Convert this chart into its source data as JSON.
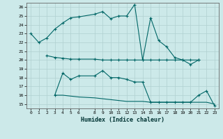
{
  "xlabel": "Humidex (Indice chaleur)",
  "bg_color": "#cce9e9",
  "grid_color": "#b0d0d0",
  "line_color": "#006666",
  "ylim": [
    14.5,
    26.5
  ],
  "xlim": [
    -0.5,
    23.5
  ],
  "yticks": [
    15,
    16,
    17,
    18,
    19,
    20,
    21,
    22,
    23,
    24,
    25,
    26
  ],
  "xticks": [
    0,
    1,
    2,
    3,
    4,
    5,
    6,
    8,
    9,
    10,
    11,
    12,
    13,
    14,
    15,
    16,
    17,
    18,
    19,
    20,
    21,
    22,
    23
  ],
  "line1_x": [
    0,
    1,
    2,
    3,
    4,
    5,
    6,
    8,
    9,
    10,
    11,
    12,
    13,
    14,
    15,
    16,
    17,
    18,
    19,
    20,
    21
  ],
  "line1_y": [
    23.0,
    22.0,
    22.5,
    23.5,
    24.2,
    24.8,
    24.9,
    25.2,
    25.5,
    24.7,
    25.0,
    25.0,
    26.3,
    20.0,
    24.8,
    22.2,
    21.5,
    20.3,
    20.0,
    19.5,
    20.0
  ],
  "line2_x": [
    2,
    3,
    4,
    5,
    6,
    8,
    9,
    10,
    11,
    12,
    13,
    14,
    15,
    16,
    17,
    18,
    19,
    20,
    21
  ],
  "line2_y": [
    20.5,
    20.3,
    20.2,
    20.1,
    20.1,
    20.1,
    20.0,
    20.0,
    20.0,
    20.0,
    20.0,
    20.0,
    20.0,
    20.0,
    20.0,
    20.0,
    20.0,
    20.0,
    20.0
  ],
  "line3_x": [
    3,
    4,
    5,
    6,
    8,
    9,
    10,
    11,
    12,
    13,
    14,
    15,
    16,
    17,
    18,
    19,
    20,
    21,
    22,
    23
  ],
  "line3_y": [
    16.0,
    18.5,
    17.8,
    18.2,
    18.2,
    18.8,
    18.0,
    18.0,
    17.8,
    17.5,
    17.5,
    15.2,
    15.2,
    15.2,
    15.2,
    15.2,
    15.2,
    16.0,
    16.5,
    14.8
  ],
  "line4_x": [
    3,
    4,
    5,
    6,
    8,
    9,
    10,
    11,
    12,
    13,
    14,
    15,
    16,
    17,
    18,
    19,
    20,
    21,
    22,
    23
  ],
  "line4_y": [
    16.0,
    16.0,
    15.9,
    15.8,
    15.7,
    15.6,
    15.5,
    15.4,
    15.3,
    15.3,
    15.3,
    15.2,
    15.2,
    15.2,
    15.2,
    15.2,
    15.2,
    15.2,
    15.2,
    15.0
  ]
}
